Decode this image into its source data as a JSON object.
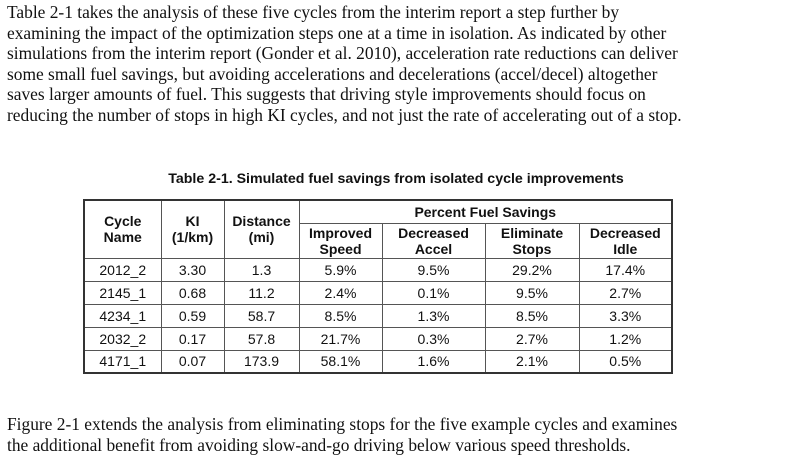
{
  "intro_paragraph": {
    "lines": [
      "Table 2-1 takes the analysis of these five cycles from the interim report a step further by",
      "examining the impact of the optimization steps one at a time in isolation. As indicated by other",
      "simulations from the interim report (Gonder et al. 2010), acceleration rate reductions can deliver",
      "some small fuel savings, but avoiding accelerations and decelerations (accel/decel) altogether",
      "saves larger amounts of fuel. This suggests that driving style improvements should focus on",
      "reducing the number of stops in high KI cycles, and not just the rate of accelerating out of a stop."
    ]
  },
  "table": {
    "caption": "Table 2-1. Simulated fuel savings from isolated cycle improvements",
    "group_header": "Percent Fuel Savings",
    "headers": {
      "cycle_name": [
        "Cycle",
        "Name"
      ],
      "ki": [
        "KI",
        "(1/km)"
      ],
      "distance": [
        "Distance",
        "(mi)"
      ],
      "improved_speed": [
        "Improved",
        "Speed"
      ],
      "decreased_accel": [
        "Decreased",
        "Accel"
      ],
      "eliminate_stops": [
        "Eliminate",
        "Stops"
      ],
      "decreased_idle": [
        "Decreased",
        "Idle"
      ]
    },
    "rows": [
      [
        "2012_2",
        "3.30",
        "1.3",
        "5.9%",
        "9.5%",
        "29.2%",
        "17.4%"
      ],
      [
        "2145_1",
        "0.68",
        "11.2",
        "2.4%",
        "0.1%",
        "9.5%",
        "2.7%"
      ],
      [
        "4234_1",
        "0.59",
        "58.7",
        "8.5%",
        "1.3%",
        "8.5%",
        "3.3%"
      ],
      [
        "2032_2",
        "0.17",
        "57.8",
        "21.7%",
        "0.3%",
        "2.7%",
        "1.2%"
      ],
      [
        "4171_1",
        "0.07",
        "173.9",
        "58.1%",
        "1.6%",
        "2.1%",
        "0.5%"
      ]
    ]
  },
  "closing_paragraph": {
    "lines": [
      "Figure 2-1 extends the analysis from eliminating stops for the five example cycles and examines",
      "the additional benefit from avoiding slow-and-go driving below various speed thresholds."
    ]
  }
}
